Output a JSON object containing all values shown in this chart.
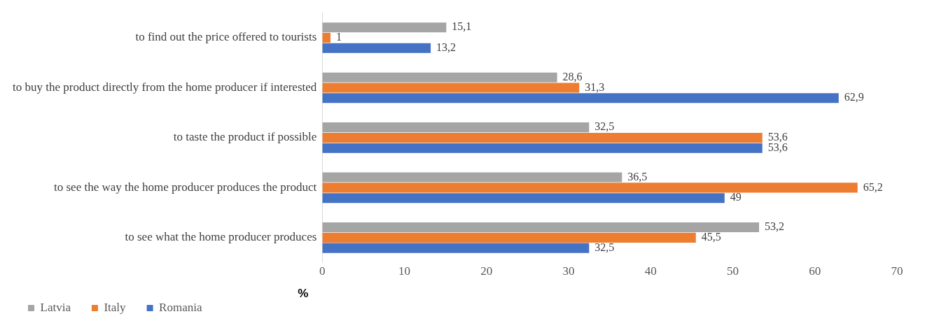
{
  "chart_data": {
    "type": "bar",
    "orientation": "horizontal",
    "xlabel": "%",
    "categories": [
      "to find out the price offered to tourists",
      "to buy the product directly from the home producer if interested",
      "to taste the product if possible",
      "to see the way the home producer produces the product",
      "to see what the home producer produces"
    ],
    "series": [
      {
        "name": "Latvia",
        "color": "#a5a5a5",
        "values": [
          15.1,
          28.6,
          32.5,
          36.5,
          53.2
        ],
        "value_labels": [
          "15,1",
          "28,6",
          "32,5",
          "36,5",
          "53,2"
        ]
      },
      {
        "name": "Italy",
        "color": "#ed7d31",
        "values": [
          1,
          31.3,
          53.6,
          65.2,
          45.5
        ],
        "value_labels": [
          "1",
          "31,3",
          "53,6",
          "65,2",
          "45,5"
        ]
      },
      {
        "name": "Romania",
        "color": "#4472c4",
        "values": [
          13.2,
          62.9,
          53.6,
          49,
          32.5
        ],
        "value_labels": [
          "13,2",
          "62,9",
          "53,6",
          "49",
          "32,5"
        ]
      }
    ],
    "xlim": [
      0,
      70
    ],
    "xticks": [
      0,
      10,
      20,
      30,
      40,
      50,
      60,
      70
    ],
    "grid": false,
    "legend": "bottom left"
  }
}
